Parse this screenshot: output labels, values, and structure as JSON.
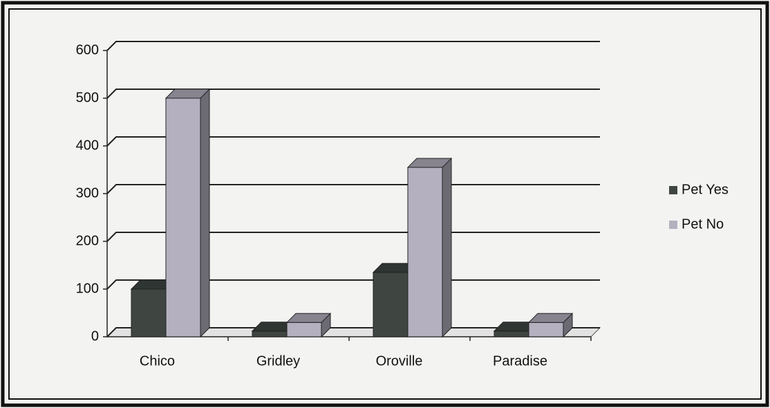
{
  "chart_data": {
    "type": "bar",
    "categories": [
      "Chico",
      "Gridley",
      "Oroville",
      "Paradise"
    ],
    "series": [
      {
        "name": "Pet Yes",
        "color": "#3f4642",
        "values": [
          100,
          12,
          135,
          12
        ]
      },
      {
        "name": "Pet No",
        "color": "#b4b0c0",
        "values": [
          500,
          30,
          355,
          30
        ]
      }
    ],
    "ylim": [
      0,
      600
    ],
    "yticks": [
      0,
      100,
      200,
      300,
      400,
      500,
      600
    ],
    "grid": true,
    "legend": "right"
  }
}
